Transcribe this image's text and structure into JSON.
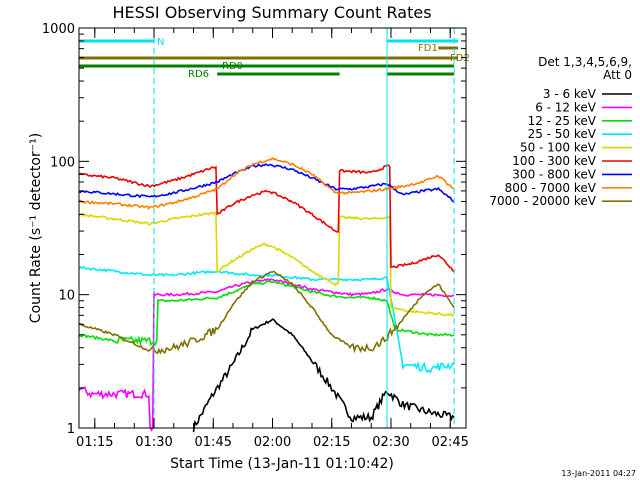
{
  "chart_data": {
    "type": "line",
    "title": "HESSI Observing Summary Count Rates",
    "xlabel": "Start Time (13-Jan-11 01:10:42)",
    "ylabel": "Count Rate (s⁻¹ detector⁻¹)",
    "yscale": "log",
    "xlim": [
      "01:11:00",
      "02:49:00"
    ],
    "ylim": [
      1,
      1000
    ],
    "x_ticks": [
      "01:15",
      "01:30",
      "01:45",
      "02:00",
      "02:15",
      "02:30",
      "02:45"
    ],
    "y_ticks": [
      "1",
      "10",
      "100",
      "1000"
    ],
    "grid": false,
    "legend_position": "right",
    "legend_title": "Det 1,3,4,5,6,9, Att 0",
    "date_stamp": "13-Jan-2011 04:27",
    "dashed_markers": [
      "01:30",
      "02:46"
    ],
    "solid_markers": [
      "01:11",
      "02:29"
    ],
    "flag_bars": [
      {
        "name": "N",
        "color": "#00e0f0",
        "segments": [
          [
            "01:11",
            "01:30"
          ],
          [
            "02:29",
            "02:47"
          ]
        ]
      },
      {
        "name": "FD1",
        "color": "#807000",
        "segments": [
          [
            "02:42",
            "02:47"
          ]
        ]
      },
      {
        "name": "FD2",
        "color": "#807000",
        "segments": [
          [
            "01:11",
            "02:47"
          ]
        ]
      },
      {
        "name": "RD0",
        "color": "#008000",
        "segments": [
          [
            "01:11",
            "02:17"
          ],
          [
            "02:17",
            "02:46"
          ]
        ]
      },
      {
        "name": "RD6",
        "color": "#008000",
        "segments": [
          [
            "01:46",
            "02:17"
          ],
          [
            "02:29",
            "02:46"
          ]
        ]
      }
    ],
    "series": [
      {
        "name": "3 - 6 keV",
        "color": "#000000",
        "x": [
          "01:40",
          "01:45",
          "01:50",
          "01:55",
          "02:00",
          "02:05",
          "02:10",
          "02:15",
          "02:20",
          "02:25",
          "02:29",
          "02:33",
          "02:40",
          "02:46"
        ],
        "y": [
          1.0,
          1.8,
          3.0,
          5.5,
          6.5,
          5.0,
          3.2,
          2.0,
          1.2,
          1.2,
          1.9,
          1.5,
          1.3,
          1.2
        ]
      },
      {
        "name": "6 - 12 keV",
        "color": "#ff00ff",
        "x": [
          "01:11",
          "01:14",
          "01:28",
          "01:29",
          "01:30",
          "01:35",
          "01:40",
          "01:46",
          "01:50",
          "01:55",
          "02:00",
          "02:05",
          "02:10",
          "02:15",
          "02:20",
          "02:25",
          "02:29",
          "02:33",
          "02:40",
          "02:46"
        ],
        "y": [
          2.0,
          1.8,
          1.8,
          1.0,
          10,
          10,
          10.2,
          10.5,
          11.5,
          12.5,
          13,
          12,
          11,
          10.5,
          10,
          10.2,
          11,
          10,
          10,
          9.8
        ]
      },
      {
        "name": "12 - 25 keV",
        "color": "#00e000",
        "x": [
          "01:11",
          "01:20",
          "01:30",
          "01:31",
          "01:35",
          "01:40",
          "01:46",
          "01:50",
          "01:55",
          "02:00",
          "02:05",
          "02:10",
          "02:15",
          "02:20",
          "02:25",
          "02:29",
          "02:31",
          "02:40",
          "02:46"
        ],
        "y": [
          5.0,
          4.5,
          4.5,
          9.0,
          9.0,
          9.2,
          9.5,
          10.5,
          12,
          12.5,
          11.5,
          10.5,
          9.8,
          9.5,
          9.5,
          9.0,
          5.5,
          5.0,
          5.0
        ]
      },
      {
        "name": "25 - 50 keV",
        "color": "#00e8ff",
        "x": [
          "01:11",
          "01:20",
          "01:29",
          "01:35",
          "01:40",
          "01:46",
          "01:50",
          "01:55",
          "02:00",
          "02:05",
          "02:10",
          "02:15",
          "02:20",
          "02:25",
          "02:29",
          "02:33",
          "02:40",
          "02:46"
        ],
        "y": [
          16,
          15,
          14,
          14,
          14.5,
          15,
          14.5,
          14,
          14,
          13.5,
          13,
          13,
          13,
          13,
          13.5,
          3.0,
          2.8,
          3.0
        ]
      },
      {
        "name": "50 - 100 keV",
        "color": "#d8d800",
        "x": [
          "01:11",
          "01:20",
          "01:29",
          "01:35",
          "01:40",
          "01:45",
          "01:46",
          "01:50",
          "01:55",
          "01:58",
          "02:00",
          "02:05",
          "02:10",
          "02:16",
          "02:17",
          "02:25",
          "02:29",
          "02:30",
          "02:35",
          "02:46"
        ],
        "y": [
          40,
          37,
          34,
          37,
          39,
          41,
          15,
          18,
          22,
          24,
          23,
          19,
          15,
          12,
          38,
          37,
          38,
          8,
          7.5,
          7.0
        ]
      },
      {
        "name": "100 - 300 keV",
        "color": "#ee0000",
        "x": [
          "01:11",
          "01:20",
          "01:29",
          "01:35",
          "01:40",
          "01:45",
          "01:46",
          "01:50",
          "01:55",
          "01:59",
          "02:05",
          "02:10",
          "02:16",
          "02:17",
          "02:25",
          "02:29",
          "02:30",
          "02:35",
          "02:42",
          "02:46"
        ],
        "y": [
          80,
          75,
          65,
          72,
          80,
          90,
          40,
          48,
          56,
          60,
          50,
          40,
          30,
          85,
          82,
          92,
          16,
          17,
          20,
          15
        ]
      },
      {
        "name": "300 - 800 keV",
        "color": "#0000ff",
        "x": [
          "01:11",
          "01:20",
          "01:29",
          "01:35",
          "01:40",
          "01:46",
          "01:50",
          "01:55",
          "01:59",
          "02:05",
          "02:10",
          "02:16",
          "02:20",
          "02:25",
          "02:29",
          "02:33",
          "02:38",
          "02:42",
          "02:46"
        ],
        "y": [
          60,
          57,
          54,
          58,
          63,
          70,
          80,
          92,
          95,
          87,
          75,
          62,
          62,
          65,
          68,
          56,
          60,
          62,
          50
        ]
      },
      {
        "name": "800 - 7000 keV",
        "color": "#ff8000",
        "x": [
          "01:11",
          "01:20",
          "01:29",
          "01:35",
          "01:40",
          "01:46",
          "01:50",
          "01:55",
          "02:00",
          "02:05",
          "02:10",
          "02:16",
          "02:20",
          "02:25",
          "02:29",
          "02:33",
          "02:38",
          "02:42",
          "02:46"
        ],
        "y": [
          50,
          48,
          45,
          49,
          54,
          62,
          78,
          95,
          105,
          95,
          80,
          58,
          58,
          60,
          62,
          65,
          70,
          78,
          62
        ]
      },
      {
        "name": "7000 - 20000 keV",
        "color": "#807000",
        "x": [
          "01:11",
          "01:20",
          "01:29",
          "01:35",
          "01:40",
          "01:46",
          "01:50",
          "01:55",
          "02:00",
          "02:05",
          "02:10",
          "02:15",
          "02:20",
          "02:25",
          "02:28",
          "02:32",
          "02:38",
          "02:42",
          "02:46"
        ],
        "y": [
          6.0,
          5.0,
          3.8,
          4.0,
          4.5,
          5.5,
          8.5,
          12.5,
          15,
          12,
          8.0,
          5.0,
          4.0,
          4.0,
          4.5,
          6.0,
          10,
          12,
          8.0
        ]
      }
    ]
  }
}
